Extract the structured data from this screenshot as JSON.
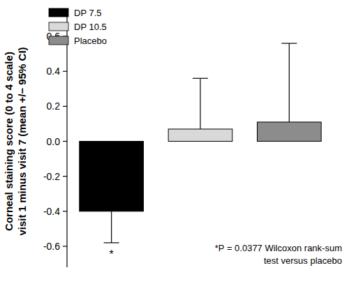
{
  "chart_data": {
    "type": "bar",
    "y_label": [
      "Corneal staining score (0 to 4 scale)",
      "visit 1 minus visit 7 (mean +/− 95% CI)"
    ],
    "categories": [
      "DP 7.5",
      "DP 10.5",
      "Placebo"
    ],
    "values": [
      -0.4,
      0.07,
      0.11
    ],
    "errors": [
      0.18,
      0.29,
      0.45
    ],
    "colors": [
      "#000000",
      "#d9d9d9",
      "#8c8c8c"
    ],
    "significance": [
      "*",
      null,
      null
    ],
    "note": [
      "*P = 0.0377 Wilcoxon rank-sum",
      "test versus placebo"
    ],
    "ylim": [
      -0.72,
      0.72
    ],
    "yticks": [
      -0.6,
      -0.4,
      -0.2,
      {
        "value": 0,
        "label": "0.0"
      },
      0.2,
      0.4,
      0.6
    ],
    "legend": "upper left"
  }
}
